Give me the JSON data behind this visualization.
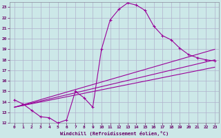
{
  "xlabel": "Windchill (Refroidissement éolien,°C)",
  "bg_color": "#cce8e8",
  "grid_color": "#b0b0cc",
  "line_color": "#990099",
  "marker_color": "#990099",
  "xlim": [
    -0.5,
    23.5
  ],
  "ylim": [
    12,
    23.5
  ],
  "xticks": [
    0,
    1,
    2,
    3,
    4,
    5,
    6,
    7,
    8,
    9,
    10,
    11,
    12,
    13,
    14,
    15,
    16,
    17,
    18,
    19,
    20,
    21,
    22,
    23
  ],
  "yticks": [
    12,
    13,
    14,
    15,
    16,
    17,
    18,
    19,
    20,
    21,
    22,
    23
  ],
  "curve_x": [
    0,
    1,
    2,
    3,
    4,
    5,
    6,
    7,
    8,
    9,
    10,
    11,
    12,
    13,
    14,
    15,
    16,
    17,
    18,
    19,
    20,
    21,
    22,
    23
  ],
  "curve_y": [
    14.2,
    13.8,
    13.2,
    12.6,
    12.5,
    12.0,
    12.3,
    15.0,
    14.4,
    13.5,
    19.0,
    21.8,
    22.8,
    23.4,
    23.2,
    22.7,
    21.2,
    20.3,
    19.9,
    19.1,
    18.5,
    18.2,
    18.0,
    17.9
  ],
  "line1_x": [
    0,
    23
  ],
  "line1_y": [
    13.5,
    19.0
  ],
  "line2_x": [
    0,
    23
  ],
  "line2_y": [
    13.5,
    18.0
  ],
  "line3_x": [
    0,
    23
  ],
  "line3_y": [
    13.5,
    17.3
  ]
}
